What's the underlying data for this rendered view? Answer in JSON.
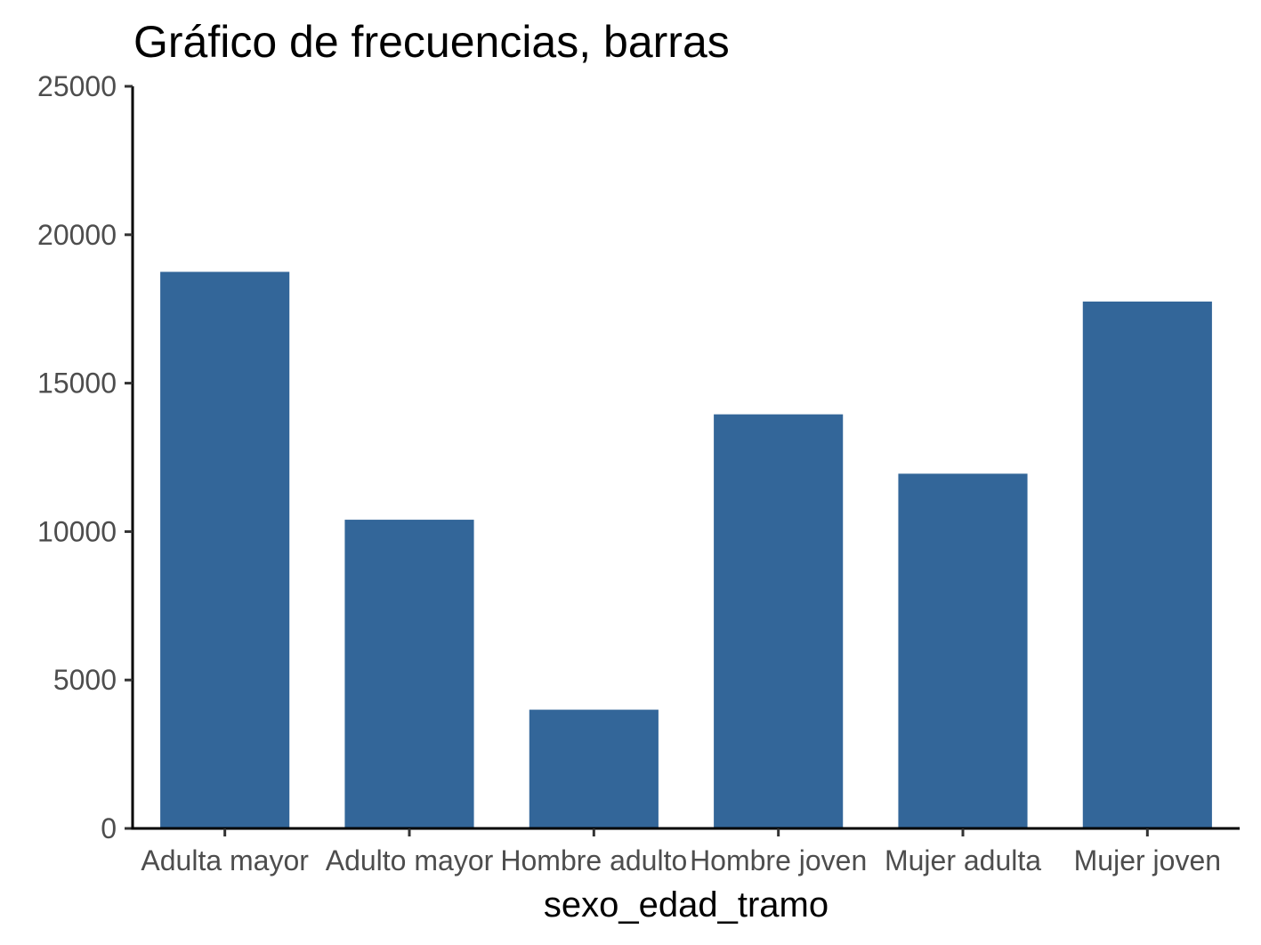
{
  "chart_data": {
    "type": "bar",
    "title": "Gráfico de frecuencias, barras",
    "xlabel": "sexo_edad_tramo",
    "ylabel": "",
    "categories": [
      "Adulta mayor",
      "Adulto mayor",
      "Hombre adulto",
      "Hombre joven",
      "Mujer adulta",
      "Mujer joven"
    ],
    "values": [
      18750,
      10400,
      4000,
      13950,
      11950,
      17750
    ],
    "ylim": [
      0,
      25000
    ],
    "yticks": [
      0,
      5000,
      10000,
      15000,
      20000,
      25000
    ],
    "ytick_labels": [
      "0",
      "5000",
      "10000",
      "15000",
      "20000",
      "25000"
    ],
    "grid": false,
    "legend": "none",
    "bar_color": "#336699"
  }
}
